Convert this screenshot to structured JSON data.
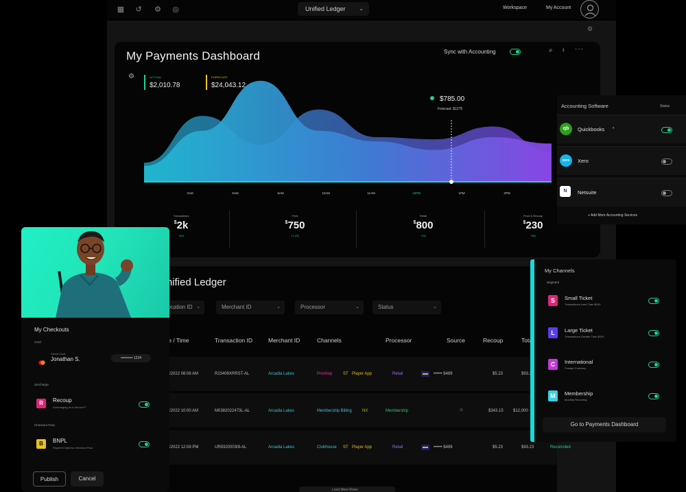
{
  "topbar": {
    "ledger_select": "Unified Ledger",
    "workspace": "Workspace",
    "my_account": "My Account"
  },
  "dashboard": {
    "title": "My Payments Dashboard",
    "sync_label": "Sync with Accounting",
    "sync_on": true,
    "legend": [
      {
        "label": "ACTUAL",
        "value": "$2,010.78",
        "color": "#1ed68e"
      },
      {
        "label": "FORECAST",
        "value": "$24,043.12",
        "color": "#f5c518"
      }
    ],
    "tooltip": {
      "value": "$785.00",
      "forecast": "Forecast: $1275"
    },
    "stats": [
      {
        "label": "Transactions",
        "currency": "$",
        "value": "2k",
        "change": "+4%"
      },
      {
        "label": "Fees",
        "currency": "$",
        "value": "750",
        "change": "+1.4%"
      },
      {
        "label": "Retail",
        "currency": "$",
        "value": "800",
        "change": "+1%"
      },
      {
        "label": "Proof & Recoup",
        "currency": "$",
        "value": "230",
        "change": "+3%"
      }
    ]
  },
  "chart_data": {
    "type": "area",
    "x": [
      "3AM",
      "6AM",
      "9AM",
      "10AM",
      "11AM",
      "12PM",
      "1PM",
      "2PM"
    ],
    "highlighted_x": "12PM",
    "series": [
      {
        "values": [
          18,
          62,
          35,
          68,
          42,
          40,
          52,
          28
        ]
      },
      {
        "values": [
          15,
          48,
          95,
          48,
          38,
          30,
          42,
          36
        ]
      }
    ],
    "colors": {
      "start": "#1fb4cf",
      "end": "#8a47e6"
    }
  },
  "ledger": {
    "title": "Unified Ledger",
    "filters": [
      "Location ID",
      "Merchant ID",
      "Processor",
      "Status"
    ],
    "columns": [
      "Date / Time",
      "Transaction ID",
      "Merchant ID",
      "Channels",
      "Processor",
      "Source",
      "Recoup",
      "Total"
    ],
    "rows": [
      {
        "date": "02/22/2022 08:08 AM",
        "txn": "R23409XRRST-AL",
        "merchant": "Arcadia Lakes",
        "channels": [
          "Proshop",
          "ST",
          "Player App"
        ],
        "processor": "Retail",
        "source": "•••••• $489",
        "recoup": "$5.23",
        "total": "$93.2"
      },
      {
        "date": "02/22/2022 10:00 AM",
        "txn": "M0382022473L-AL",
        "merchant": "Arcadia Lakes",
        "channels": [
          "Membership Billing",
          "NX"
        ],
        "processor": "Membership",
        "source": "",
        "recoup": "$343.15",
        "total": "$12,000"
      },
      {
        "date": "02/22/2022 12:08 PM",
        "txn": "UR9320003I9-AL",
        "merchant": "Arcadia Lakes",
        "channels": [
          "Clubhouse",
          "ST",
          "Player App"
        ],
        "processor": "Retail",
        "source": "•••••• $489",
        "recoup": "$5.23",
        "total": "$93.23",
        "status": "Reconciled"
      }
    ],
    "load_more": "Load More Rows"
  },
  "checkouts": {
    "title": "My Checkouts",
    "card_section": "Card",
    "card_caption": "Saved Card",
    "card_holder": "Jonathan S.",
    "card_number": "•••••••••• 1234",
    "surcharge_section": "Surcharge",
    "recoup_name": "Recoup",
    "recoup_desc": "Surcharging as a Service™",
    "recoup_on": true,
    "checkout_flow_section": "Checkout Flow",
    "bnpl_name": "BNPL",
    "bnpl_desc": "Payment Options Checkout Flow",
    "bnpl_on": true,
    "publish": "Publish",
    "cancel": "Cancel"
  },
  "accounting": {
    "title": "Accounting Software",
    "status_label": "Status",
    "items": [
      {
        "name": "Quickbooks",
        "logo": "qb",
        "color": "#2ca01c",
        "on": true
      },
      {
        "name": "Xero",
        "logo": "xero",
        "color": "#13b5ea",
        "on": false
      },
      {
        "name": "Netsuite",
        "logo": "N",
        "color": "#ffffff",
        "on": false
      }
    ],
    "add_more": "+ Add More Accounting Services"
  },
  "channels": {
    "title": "My Channels",
    "section": "Segment",
    "items": [
      {
        "letter": "S",
        "name": "Small Ticket",
        "desc": "Transactions Less Than $100",
        "color": "#e0247a",
        "on": true
      },
      {
        "letter": "L",
        "name": "Large Ticket",
        "desc": "Transactions Greater Than $100",
        "color": "#5b3df0",
        "on": true
      },
      {
        "letter": "C",
        "name": "International",
        "desc": "Foreign Currency",
        "color": "#c23ad6",
        "on": true
      },
      {
        "letter": "M",
        "name": "Membership",
        "desc": "Monthly Recurring",
        "color": "#3ad0e6",
        "on": true
      }
    ],
    "goto_button": "Go to Payments Dashboard"
  }
}
